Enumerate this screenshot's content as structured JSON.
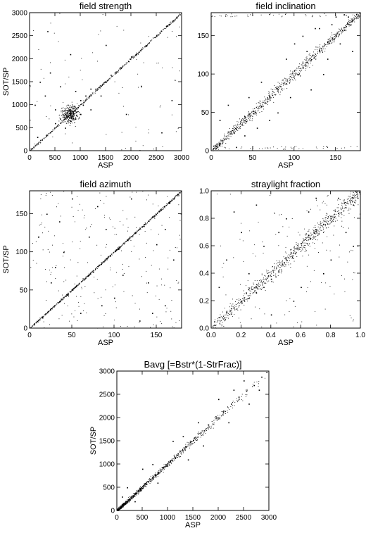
{
  "chart_data": [
    {
      "type": "scatter",
      "title": "field strength",
      "xlabel": "ASP",
      "ylabel": "SOT/SP",
      "xlim": [
        0,
        3000
      ],
      "ylim": [
        0,
        3000
      ],
      "xticks": [
        "0",
        "500",
        "1000",
        "1500",
        "2000",
        "2500",
        "3000"
      ],
      "yticks": [
        "0",
        "500",
        "1000",
        "1500",
        "2000",
        "2500",
        "3000"
      ],
      "points": [
        [
          600,
          700
        ],
        [
          700,
          800
        ],
        [
          800,
          900
        ],
        [
          900,
          700
        ],
        [
          500,
          900
        ],
        [
          1000,
          1100
        ],
        [
          800,
          650
        ],
        [
          750,
          1000
        ],
        [
          1100,
          1200
        ],
        [
          1300,
          1350
        ],
        [
          1500,
          1500
        ],
        [
          1800,
          1800
        ],
        [
          2100,
          2100
        ],
        [
          2500,
          2500
        ],
        [
          2900,
          2900
        ],
        [
          300,
          1200
        ],
        [
          200,
          1500
        ],
        [
          400,
          400
        ],
        [
          150,
          300
        ],
        [
          1200,
          900
        ],
        [
          600,
          1400
        ],
        [
          1000,
          800
        ],
        [
          1600,
          1650
        ],
        [
          2000,
          2050
        ],
        [
          2700,
          2720
        ],
        [
          100,
          1000
        ],
        [
          900,
          1300
        ],
        [
          700,
          500
        ],
        [
          1200,
          1350
        ],
        [
          2300,
          2280
        ],
        [
          1400,
          1200
        ],
        [
          500,
          600
        ],
        [
          850,
          850
        ],
        [
          950,
          950
        ],
        [
          1050,
          1000
        ],
        [
          650,
          800
        ],
        [
          1700,
          1700
        ],
        [
          400,
          1700
        ],
        [
          1900,
          800
        ],
        [
          2600,
          400
        ],
        [
          350,
          2600
        ],
        [
          1500,
          2300
        ],
        [
          2200,
          1400
        ],
        [
          800,
          2100
        ],
        [
          2800,
          1100
        ]
      ],
      "grid": false
    },
    {
      "type": "scatter",
      "title": "field inclination",
      "xlabel": "ASP",
      "ylabel": "",
      "xlim": [
        0,
        180
      ],
      "ylim": [
        0,
        180
      ],
      "xticks": [
        "0",
        "50",
        "100",
        "150"
      ],
      "yticks": [
        "0",
        "50",
        "100",
        "150"
      ],
      "points": [
        [
          10,
          10
        ],
        [
          20,
          25
        ],
        [
          30,
          28
        ],
        [
          40,
          45
        ],
        [
          50,
          52
        ],
        [
          60,
          58
        ],
        [
          70,
          72
        ],
        [
          80,
          80
        ],
        [
          90,
          88
        ],
        [
          100,
          105
        ],
        [
          110,
          115
        ],
        [
          120,
          118
        ],
        [
          130,
          132
        ],
        [
          140,
          142
        ],
        [
          150,
          150
        ],
        [
          160,
          158
        ],
        [
          170,
          170
        ],
        [
          175,
          178
        ],
        [
          20,
          60
        ],
        [
          40,
          20
        ],
        [
          60,
          90
        ],
        [
          80,
          50
        ],
        [
          100,
          140
        ],
        [
          120,
          80
        ],
        [
          130,
          160
        ],
        [
          140,
          120
        ],
        [
          110,
          150
        ],
        [
          150,
          175
        ],
        [
          160,
          178
        ],
        [
          30,
          5
        ],
        [
          5,
          3
        ],
        [
          90,
          120
        ],
        [
          70,
          40
        ],
        [
          105,
          100
        ],
        [
          115,
          130
        ],
        [
          125,
          160
        ],
        [
          145,
          165
        ],
        [
          155,
          140
        ],
        [
          165,
          175
        ],
        [
          45,
          70
        ],
        [
          55,
          30
        ],
        [
          95,
          70
        ],
        [
          135,
          100
        ],
        [
          10,
          40
        ],
        [
          170,
          130
        ]
      ],
      "grid": false
    },
    {
      "type": "scatter",
      "title": "field azimuth",
      "xlabel": "ASP",
      "ylabel": "SOT/SP",
      "xlim": [
        0,
        180
      ],
      "ylim": [
        0,
        180
      ],
      "xticks": [
        "0",
        "50",
        "100",
        "150"
      ],
      "yticks": [
        "0",
        "50",
        "100",
        "150"
      ],
      "points": [
        [
          5,
          5
        ],
        [
          15,
          14
        ],
        [
          25,
          26
        ],
        [
          35,
          35
        ],
        [
          45,
          44
        ],
        [
          55,
          56
        ],
        [
          65,
          65
        ],
        [
          75,
          74
        ],
        [
          85,
          86
        ],
        [
          95,
          95
        ],
        [
          105,
          104
        ],
        [
          115,
          116
        ],
        [
          125,
          125
        ],
        [
          135,
          134
        ],
        [
          145,
          146
        ],
        [
          155,
          155
        ],
        [
          165,
          164
        ],
        [
          175,
          176
        ],
        [
          20,
          150
        ],
        [
          40,
          100
        ],
        [
          60,
          20
        ],
        [
          80,
          160
        ],
        [
          100,
          40
        ],
        [
          120,
          170
        ],
        [
          140,
          60
        ],
        [
          160,
          30
        ],
        [
          30,
          80
        ],
        [
          90,
          130
        ],
        [
          150,
          110
        ],
        [
          10,
          120
        ],
        [
          170,
          90
        ],
        [
          50,
          170
        ],
        [
          130,
          10
        ],
        [
          70,
          120
        ],
        [
          110,
          70
        ],
        [
          25,
          60
        ],
        [
          145,
          20
        ],
        [
          85,
          30
        ],
        [
          35,
          140
        ],
        [
          160,
          130
        ]
      ],
      "grid": false
    },
    {
      "type": "scatter",
      "title": "straylight fraction",
      "xlabel": "ASP",
      "ylabel": "",
      "xlim": [
        0,
        1
      ],
      "ylim": [
        0,
        1
      ],
      "xticks": [
        "0.0",
        "0.2",
        "0.4",
        "0.6",
        "0.8",
        "1.0"
      ],
      "yticks": [
        "0.0",
        "0.2",
        "0.4",
        "0.6",
        "0.8",
        "1.0"
      ],
      "points": [
        [
          0.02,
          0.05
        ],
        [
          0.05,
          0.08
        ],
        [
          0.1,
          0.12
        ],
        [
          0.15,
          0.15
        ],
        [
          0.2,
          0.2
        ],
        [
          0.25,
          0.22
        ],
        [
          0.3,
          0.26
        ],
        [
          0.35,
          0.3
        ],
        [
          0.4,
          0.36
        ],
        [
          0.45,
          0.42
        ],
        [
          0.5,
          0.5
        ],
        [
          0.55,
          0.55
        ],
        [
          0.6,
          0.62
        ],
        [
          0.65,
          0.68
        ],
        [
          0.7,
          0.72
        ],
        [
          0.75,
          0.76
        ],
        [
          0.8,
          0.8
        ],
        [
          0.85,
          0.84
        ],
        [
          0.9,
          0.88
        ],
        [
          0.95,
          0.9
        ],
        [
          0.98,
          0.95
        ],
        [
          0.1,
          0.5
        ],
        [
          0.2,
          0.7
        ],
        [
          0.3,
          0.9
        ],
        [
          0.4,
          0.1
        ],
        [
          0.5,
          0.8
        ],
        [
          0.6,
          0.3
        ],
        [
          0.7,
          0.95
        ],
        [
          0.8,
          0.5
        ],
        [
          0.9,
          0.7
        ],
        [
          0.15,
          0.85
        ],
        [
          0.35,
          0.6
        ],
        [
          0.55,
          0.2
        ],
        [
          0.75,
          0.4
        ],
        [
          0.25,
          0.4
        ],
        [
          0.45,
          0.7
        ],
        [
          0.65,
          0.85
        ],
        [
          0.85,
          0.95
        ],
        [
          0.05,
          0.3
        ],
        [
          0.95,
          0.6
        ]
      ],
      "grid": false
    },
    {
      "type": "scatter",
      "title": "Bavg [=Bstr*(1-StrFrac)]",
      "xlabel": "ASP",
      "ylabel": "SOT/SP",
      "xlim": [
        0,
        3000
      ],
      "ylim": [
        0,
        3000
      ],
      "xticks": [
        "0",
        "500",
        "1000",
        "1500",
        "2000",
        "2500",
        "3000"
      ],
      "yticks": [
        "0",
        "500",
        "1000",
        "1500",
        "2000",
        "2500",
        "3000"
      ],
      "points": [
        [
          50,
          60
        ],
        [
          150,
          170
        ],
        [
          300,
          320
        ],
        [
          450,
          480
        ],
        [
          600,
          630
        ],
        [
          750,
          780
        ],
        [
          900,
          930
        ],
        [
          1050,
          1080
        ],
        [
          1200,
          1230
        ],
        [
          1350,
          1380
        ],
        [
          1500,
          1520
        ],
        [
          1650,
          1680
        ],
        [
          1800,
          1850
        ],
        [
          1950,
          2000
        ],
        [
          2100,
          2150
        ],
        [
          2250,
          2300
        ],
        [
          2400,
          2450
        ],
        [
          2550,
          2580
        ],
        [
          2700,
          2700
        ],
        [
          2850,
          2880
        ],
        [
          2950,
          2980
        ],
        [
          200,
          500
        ],
        [
          500,
          900
        ],
        [
          800,
          600
        ],
        [
          1100,
          1500
        ],
        [
          1400,
          1100
        ],
        [
          1700,
          1400
        ],
        [
          2000,
          2400
        ],
        [
          2300,
          2600
        ],
        [
          2600,
          2300
        ],
        [
          100,
          300
        ],
        [
          350,
          200
        ],
        [
          700,
          1000
        ],
        [
          1300,
          1600
        ],
        [
          1600,
          1900
        ],
        [
          2200,
          1900
        ],
        [
          2500,
          2800
        ],
        [
          2800,
          2600
        ]
      ],
      "grid": false
    }
  ]
}
